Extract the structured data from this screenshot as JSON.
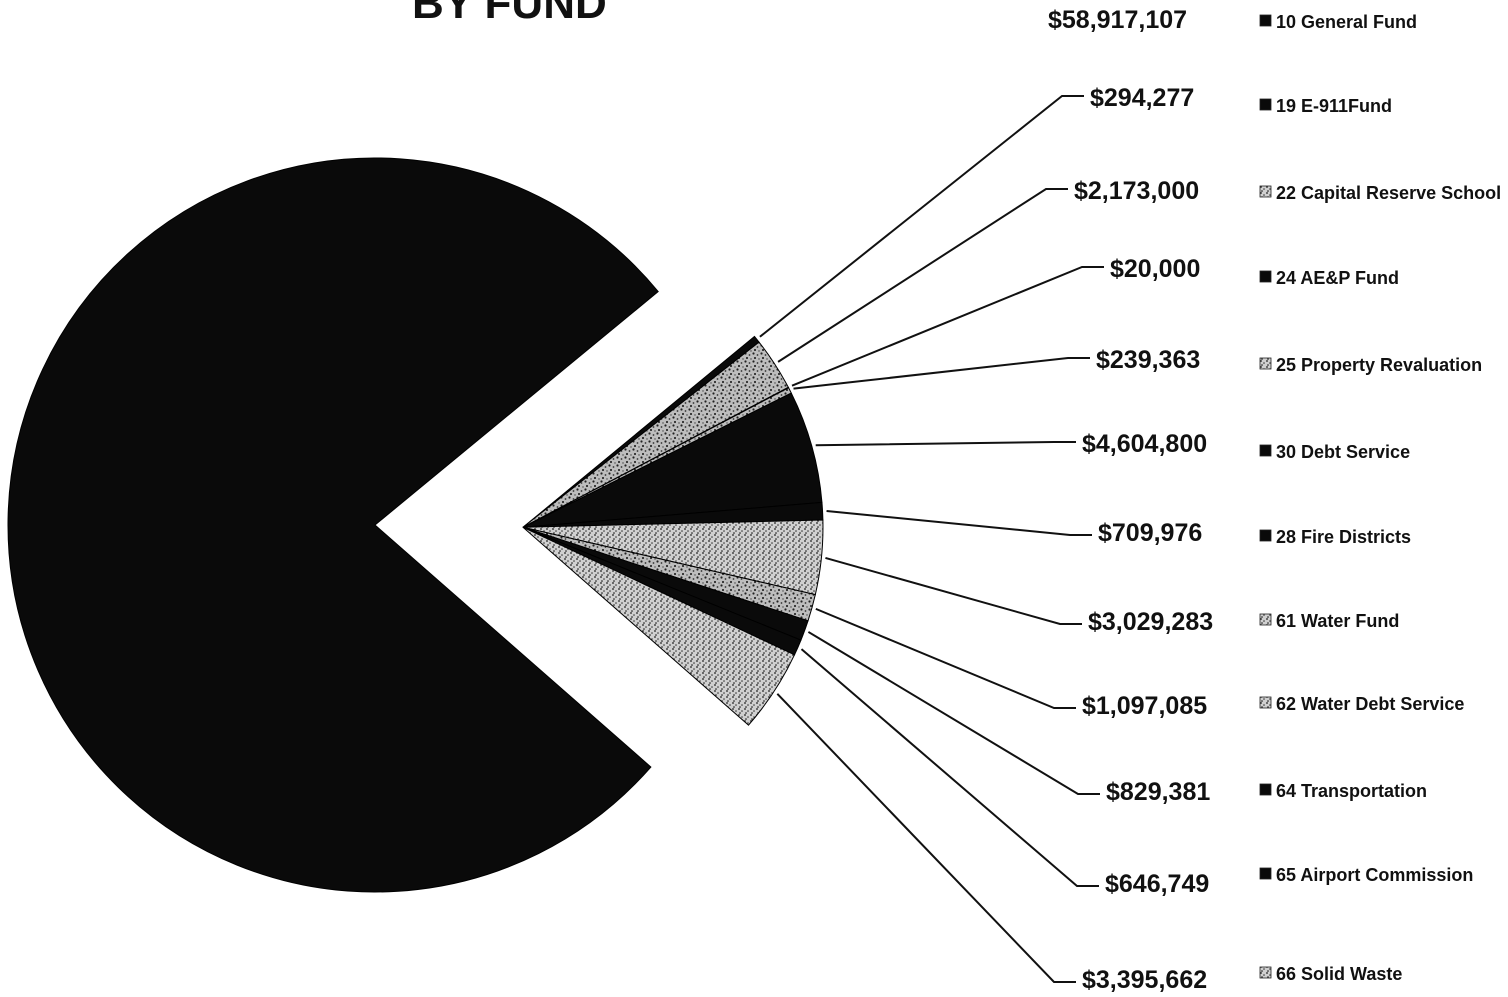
{
  "colors": {
    "solid": "#0a0a0a",
    "speckled_light": "#cfcfcf",
    "speckled_dark": "#3a3a3a",
    "leader": "#111111",
    "background": "#ffffff"
  },
  "chart_data": {
    "type": "pie",
    "title": "BY FUND",
    "exploded_slices_after_first": true,
    "legend_placement": "right",
    "slices": [
      {
        "fund": "10 General Fund",
        "value": 58917107,
        "label": "$58,917,107",
        "pattern": "solid"
      },
      {
        "fund": "19 E-911Fund",
        "value": 294277,
        "label": "$294,277",
        "pattern": "solid"
      },
      {
        "fund": "22 Capital Reserve School",
        "value": 2173000,
        "label": "$2,173,000",
        "pattern": "speckled"
      },
      {
        "fund": "24 AE&P Fund",
        "value": 20000,
        "label": "$20,000",
        "pattern": "solid"
      },
      {
        "fund": "25 Property Revaluation",
        "value": 239363,
        "label": "$239,363",
        "pattern": "speckled"
      },
      {
        "fund": "30 Debt Service",
        "value": 4604800,
        "label": "$4,604,800",
        "pattern": "solid"
      },
      {
        "fund": "28 Fire Districts",
        "value": 709976,
        "label": "$709,976",
        "pattern": "solid"
      },
      {
        "fund": "61 Water Fund",
        "value": 3029283,
        "label": "$3,029,283",
        "pattern": "speckled"
      },
      {
        "fund": "62 Water Debt Service",
        "value": 1097085,
        "label": "$1,097,085",
        "pattern": "speckled"
      },
      {
        "fund": "64 Transportation",
        "value": 829381,
        "label": "$829,381",
        "pattern": "solid"
      },
      {
        "fund": "65 Airport Commission",
        "value": 646749,
        "label": "$646,749",
        "pattern": "solid"
      },
      {
        "fund": "66 Solid Waste",
        "value": 3395662,
        "label": "$3,395,662",
        "pattern": "speckled"
      }
    ]
  }
}
